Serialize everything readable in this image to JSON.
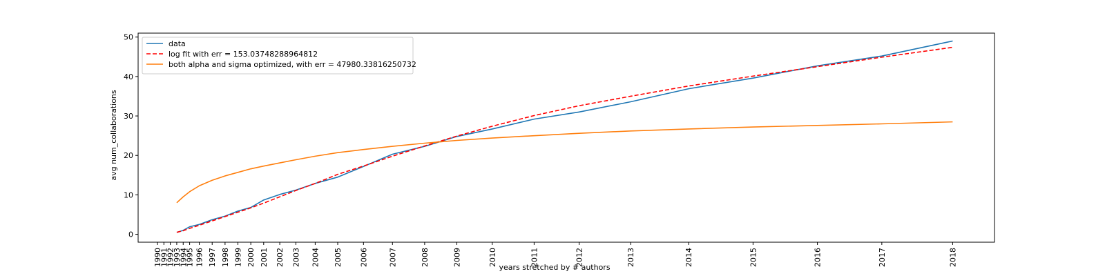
{
  "chart_data": {
    "type": "line",
    "title": "",
    "xlabel": "years stretched by # authors",
    "ylabel": "avg num_collaborations",
    "x_tick_labels": [
      "1990",
      "1991",
      "1992",
      "1993",
      "1994",
      "1995",
      "1996",
      "1997",
      "1998",
      "1999",
      "2000",
      "2001",
      "2002",
      "2003",
      "2004",
      "2005",
      "2006",
      "2007",
      "2008",
      "2009",
      "2010",
      "2011",
      "2012",
      "2013",
      "2014",
      "2015",
      "2016",
      "2017",
      "2018"
    ],
    "x_tick_positions": [
      -1.5,
      -0.5,
      0.5,
      1.5,
      2.5,
      3.5,
      5,
      7,
      9,
      11,
      13,
      15,
      17.5,
      20,
      23,
      26.5,
      30.5,
      35,
      40,
      45,
      50.5,
      57,
      64,
      72,
      81,
      91,
      101,
      111,
      122
    ],
    "xlim": [
      -4.5,
      128.5
    ],
    "ylim": [
      -2,
      51
    ],
    "y_ticks": [
      0,
      10,
      20,
      30,
      40,
      50
    ],
    "grid": false,
    "legend_position": "top-left",
    "series": [
      {
        "name": "data",
        "color": "#1f77b4",
        "style": "solid",
        "x": [
          1.5,
          2.5,
          3.5,
          5,
          7,
          9,
          11,
          13,
          15,
          17.5,
          20,
          23,
          26.5,
          30.5,
          35,
          40,
          45,
          50.5,
          57,
          64,
          72,
          81,
          91,
          101,
          111,
          122
        ],
        "y": [
          0.5,
          1.0,
          1.9,
          2.5,
          3.7,
          4.6,
          5.9,
          6.8,
          8.7,
          10.1,
          11.2,
          12.9,
          14.5,
          17.2,
          20.3,
          22.3,
          24.8,
          26.7,
          29.2,
          31.0,
          33.6,
          36.9,
          39.6,
          42.7,
          45.2,
          49.0
        ]
      },
      {
        "name": "log fit with err = 153.03748288964812",
        "color": "#ff0000",
        "style": "dashed",
        "x": [
          1.5,
          2.5,
          3.5,
          5,
          7,
          9,
          11,
          13,
          15,
          17.5,
          20,
          23,
          26.5,
          30.5,
          35,
          40,
          45,
          50.5,
          57,
          64,
          72,
          81,
          91,
          101,
          111,
          122
        ],
        "y": [
          0.5,
          0.9,
          1.5,
          2.3,
          3.4,
          4.5,
          5.6,
          6.7,
          7.9,
          9.5,
          11.1,
          12.9,
          15.2,
          17.3,
          19.8,
          22.4,
          24.9,
          27.4,
          30.1,
          32.6,
          35.0,
          37.6,
          40.1,
          42.5,
          44.9,
          47.4
        ]
      },
      {
        "name": "both alpha and sigma optimized, with err = 47980.33816250732",
        "color": "#ff7f0e",
        "style": "solid",
        "x": [
          1.5,
          2.5,
          3.5,
          5,
          7,
          9,
          11,
          13,
          15,
          17.5,
          20,
          23,
          26.5,
          30.5,
          35,
          40,
          45,
          50.5,
          57,
          64,
          72,
          81,
          91,
          101,
          111,
          122
        ],
        "y": [
          8.0,
          9.5,
          10.8,
          12.3,
          13.7,
          14.8,
          15.7,
          16.6,
          17.3,
          18.1,
          18.9,
          19.8,
          20.7,
          21.5,
          22.3,
          23.1,
          23.8,
          24.4,
          25.0,
          25.6,
          26.2,
          26.7,
          27.2,
          27.6,
          28.0,
          28.5
        ]
      }
    ]
  }
}
